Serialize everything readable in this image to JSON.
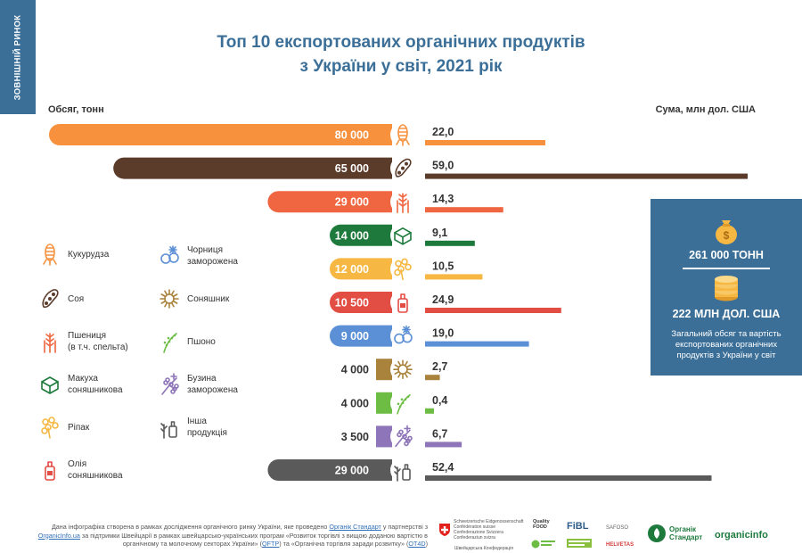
{
  "side_tab": "ЗОВНІШНІЙ РИНОК",
  "title": {
    "line1": "Топ 10 експортованих органічних продуктів",
    "line2": "з України у світ, 2021 рік"
  },
  "chart_data": {
    "type": "bar",
    "title": "Топ 10 експортованих органічних продуктів з України у світ, 2021 рік",
    "left_axis_label": "Обсяг, тонн",
    "right_axis_label": "Сума, млн дол. США",
    "categories": [
      "Кукурудза",
      "Соя",
      "Пшениця (в т.ч. спельта)",
      "Макуха соняшникова",
      "Ріпак",
      "Олія соняшникова",
      "Чорниця заморожена",
      "Соняшник",
      "Пшоно",
      "Бузина заморожена",
      "Інша продукція"
    ],
    "rows": [
      {
        "product": "Кукурудза",
        "volume": 80000,
        "volume_label": "80 000",
        "value": 22.0,
        "value_label": "22,0",
        "color": "#f7913d",
        "icon": "corn-icon"
      },
      {
        "product": "Соя",
        "volume": 65000,
        "volume_label": "65 000",
        "value": 59.0,
        "value_label": "59,0",
        "color": "#5b3b2a",
        "icon": "soy-icon"
      },
      {
        "product": "Пшениця (в т.ч. спельта)",
        "volume": 29000,
        "volume_label": "29 000",
        "value": 14.3,
        "value_label": "14,3",
        "color": "#ef6640",
        "icon": "wheat-icon"
      },
      {
        "product": "Макуха соняшникова",
        "volume": 14000,
        "volume_label": "14 000",
        "value": 9.1,
        "value_label": "9,1",
        "color": "#1e7a3c",
        "icon": "oilcake-icon"
      },
      {
        "product": "Ріпак",
        "volume": 12000,
        "volume_label": "12 000",
        "value": 10.5,
        "value_label": "10,5",
        "color": "#f6b843",
        "icon": "rapeseed-icon"
      },
      {
        "product": "Олія соняшникова",
        "volume": 10500,
        "volume_label": "10 500",
        "value": 24.9,
        "value_label": "24,9",
        "color": "#e24d44",
        "icon": "oil-bottle-icon"
      },
      {
        "product": "Чорниця заморожена",
        "volume": 9000,
        "volume_label": "9 000",
        "value": 19.0,
        "value_label": "19,0",
        "color": "#5b8fd6",
        "icon": "blueberry-icon"
      },
      {
        "product": "Соняшник",
        "volume": 4000,
        "volume_label": "4 000",
        "value": 2.7,
        "value_label": "2,7",
        "color": "#a9823b",
        "icon": "sunflower-icon"
      },
      {
        "product": "Пшоно",
        "volume": 4000,
        "volume_label": "4 000",
        "value": 0.4,
        "value_label": "0,4",
        "color": "#6dbd45",
        "icon": "millet-icon"
      },
      {
        "product": "Бузина заморожена",
        "volume": 3500,
        "volume_label": "3 500",
        "value": 6.7,
        "value_label": "6,7",
        "color": "#8e74b8",
        "icon": "elderberry-icon"
      },
      {
        "product": "Інша продукція",
        "volume": 29000,
        "volume_label": "29 000",
        "value": 52.4,
        "value_label": "52,4",
        "color": "#5a5a5a",
        "icon": "other-products-icon"
      }
    ],
    "volume_max": 80000,
    "value_max": 59.0
  },
  "legend": {
    "col1": [
      {
        "label": "Кукурудза",
        "icon": "corn-icon"
      },
      {
        "label": "Соя",
        "icon": "soy-icon"
      },
      {
        "label": "Пшениця\n(в т.ч. спельта)",
        "icon": "wheat-icon"
      },
      {
        "label": "Макуха\nсоняшникова",
        "icon": "oilcake-icon"
      },
      {
        "label": "Ріпак",
        "icon": "rapeseed-icon"
      },
      {
        "label": "Олія\nсоняшникова",
        "icon": "oil-bottle-icon"
      }
    ],
    "col2": [
      {
        "label": "Чорниця\nзаморожена",
        "icon": "blueberry-icon"
      },
      {
        "label": "Соняшник",
        "icon": "sunflower-icon"
      },
      {
        "label": "Пшоно",
        "icon": "millet-icon"
      },
      {
        "label": "Бузина\nзаморожена",
        "icon": "elderberry-icon"
      },
      {
        "label": "Інша\nпродукція",
        "icon": "other-products-icon"
      }
    ]
  },
  "summary": {
    "total_volume": "261 000 ТОНН",
    "total_value": "222 МЛН ДОЛ. США",
    "caption": "Загальний обсяг та вартість експортованих органічних продуктів з України у світ",
    "icon_top": "money-bag-icon",
    "icon_bottom": "coin-stack-icon"
  },
  "footer": {
    "part1": "Дана інфографіка створена в рамках дослідження органічного ринку України, яке проведено ",
    "link1": "Органік Стандарт",
    "part2": " у партнерстві з ",
    "link2": "OrganicInfo.ua",
    "part3": " за підтримки Швейцарії в рамках швейцарсько-українських програм «Розвиток торгівлі з вищою доданою вартістю в органічному та молочному секторах України» (",
    "link3": "QFTP",
    "part4": ") та «Органічна торгівля заради розвитку» (",
    "link4": "OT4D",
    "part5": ")"
  },
  "logos": {
    "swiss_lines": [
      "Schweizerische Eidgenossenschaft",
      "Confédération suisse",
      "Confederazione Svizzera",
      "Confederaziun svizra"
    ],
    "swiss_sub": "Швейцарська Конфедерація",
    "quality_food": "Quality FOOD",
    "fibl": "FiBL",
    "safoso": "SAFOSO",
    "helvetas": "HELVETAS",
    "organic_standard": "Органік Стандарт",
    "organicinfo": "organicinfo"
  }
}
